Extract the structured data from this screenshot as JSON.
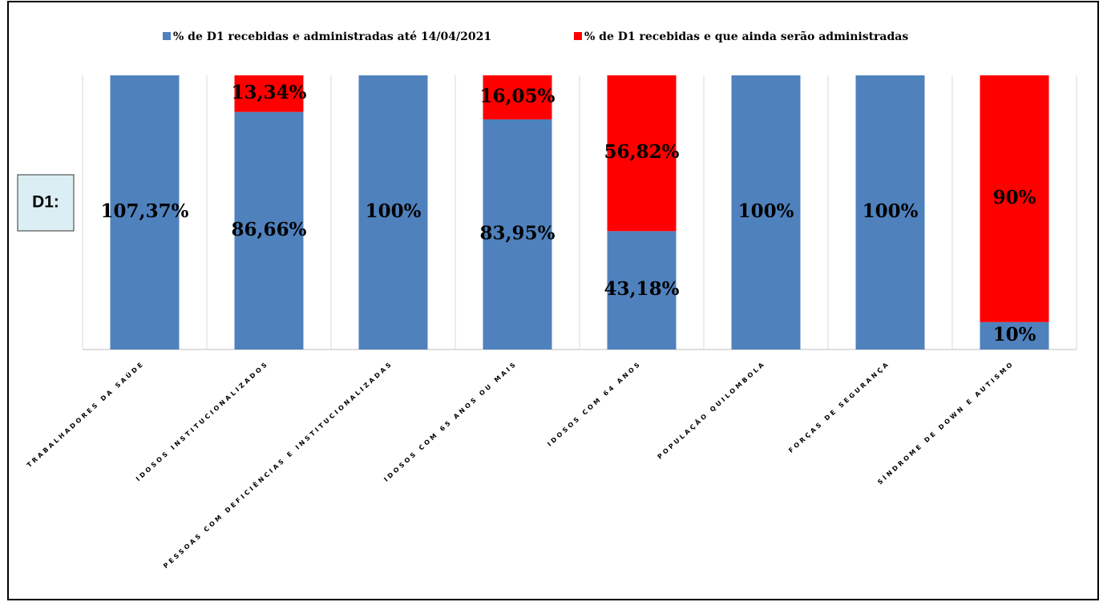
{
  "chart_data": {
    "type": "bar",
    "stacked": "percent",
    "annotation": "D1:",
    "categories": [
      "TRABALHADORES DA SAÚDE",
      "IDOSOS INSTITUCIONALIZADOS",
      "PESSOAS COM DEFICIÊNCIAS E INSTITUCIONALIZADAS",
      "IDOSOS COM 65 ANOS OU MAIS",
      "IDOSOS COM 64 ANOS",
      "POPULAÇÃO QUILOMBOLA",
      "FORÇAS DE SEGURANÇA",
      "SÍNDROME DE DOWN E AUTISMO"
    ],
    "series": [
      {
        "name": "% de D1 recebidas e administradas até 14/04/2021",
        "color": "#4f81bd",
        "values": [
          107.37,
          86.66,
          100,
          83.95,
          43.18,
          100,
          100,
          10
        ],
        "value_labels": [
          "107,37%",
          "86,66%",
          "100%",
          "83,95%",
          "43,18%",
          "100%",
          "100%",
          "10%"
        ]
      },
      {
        "name": "% de D1 recebidas e que ainda serão administradas",
        "color": "#ff0000",
        "values": [
          null,
          13.34,
          null,
          16.05,
          56.82,
          null,
          null,
          90
        ],
        "value_labels": [
          null,
          "13,34%",
          null,
          "16,05%",
          "56,82%",
          null,
          null,
          "90%"
        ]
      }
    ],
    "legend": "top",
    "grid": true
  }
}
